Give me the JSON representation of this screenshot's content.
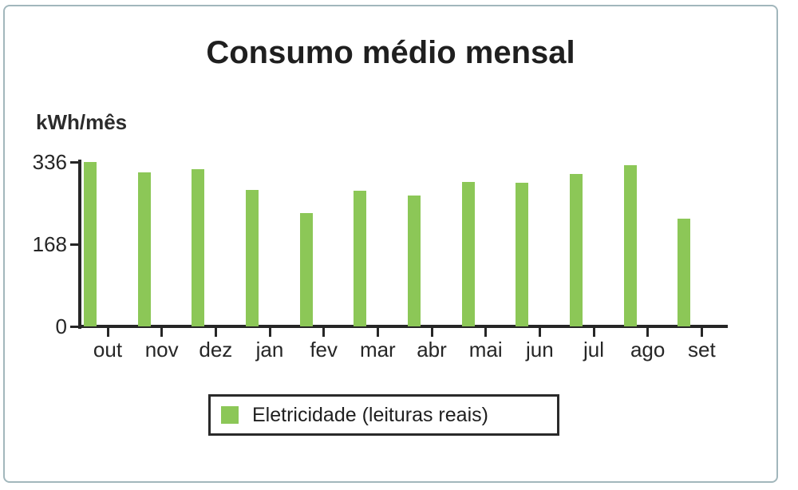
{
  "title": "Consumo médio mensal",
  "y_axis_unit_label": "kWh/mês",
  "colors": {
    "bar": "#8CC757",
    "axis": "#262626",
    "frame_border": "#A2B7BC"
  },
  "chart_data": {
    "type": "bar",
    "title": "Consumo médio mensal",
    "xlabel": "",
    "ylabel": "kWh/mês",
    "categories": [
      "out",
      "nov",
      "dez",
      "jan",
      "fev",
      "mar",
      "abr",
      "mai",
      "jun",
      "jul",
      "ago",
      "set"
    ],
    "values": [
      336,
      315,
      322,
      279,
      232,
      278,
      267,
      295,
      293,
      311,
      330,
      221
    ],
    "yticks": [
      0,
      168,
      336
    ],
    "ylim": [
      0,
      336
    ],
    "bar_color": "#8CC757",
    "grid": false,
    "legend_position": "bottom"
  },
  "legend": {
    "items": [
      {
        "label": "Eletricidade (leituras reais)",
        "color": "#8CC757"
      }
    ]
  }
}
